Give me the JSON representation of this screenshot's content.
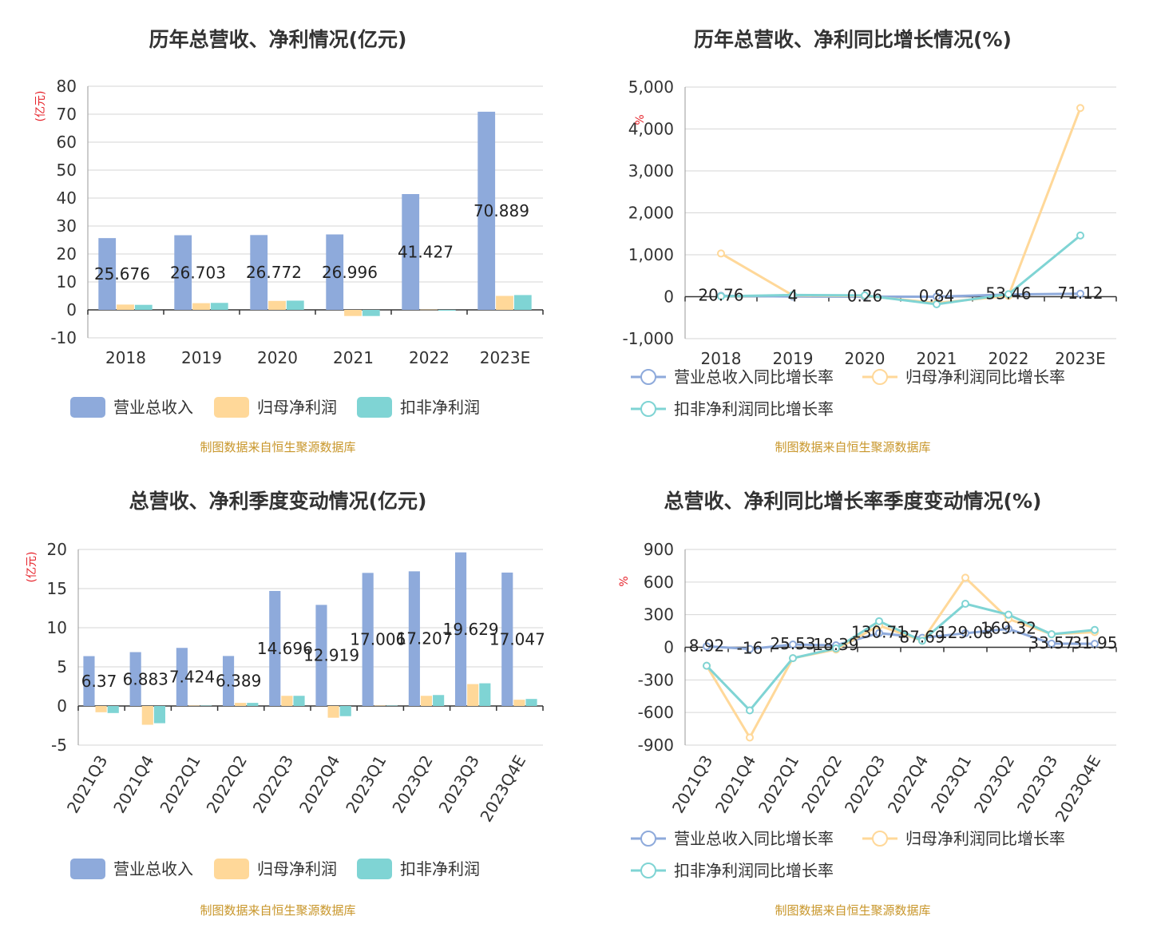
{
  "source_note": "制图数据来自恒生聚源数据库",
  "colors": {
    "revenue": "#8eaadb",
    "net_profit": "#ffd899",
    "deducted_profit": "#7fd4d4",
    "revenue_line": "#8eaadb",
    "net_profit_line": "#ffd899",
    "deducted_line": "#7fd4d4",
    "grid": "#d6d6d6",
    "axis": "#333333"
  },
  "chart_data": [
    {
      "id": "annual_bar",
      "type": "bar",
      "title": "历年总营收、净利情况(亿元)",
      "ylabel": "(亿元)",
      "ylim": [
        -10,
        80
      ],
      "yticks": [
        -10,
        0,
        10,
        20,
        30,
        40,
        50,
        60,
        70,
        80
      ],
      "ytick_labels": [
        "-10",
        "0",
        "10",
        "20",
        "30",
        "40",
        "50",
        "60",
        "70",
        "80"
      ],
      "categories": [
        "2018",
        "2019",
        "2020",
        "2021",
        "2022",
        "2023E"
      ],
      "series": [
        {
          "name": "营业总收入",
          "color_key": "revenue",
          "values": [
            25.676,
            26.703,
            26.772,
            26.996,
            41.427,
            70.889
          ]
        },
        {
          "name": "归母净利润",
          "color_key": "net_profit",
          "values": [
            1.9,
            2.4,
            3.2,
            -2.2,
            0.1,
            5.0
          ]
        },
        {
          "name": "扣非净利润",
          "color_key": "deducted_profit",
          "values": [
            1.8,
            2.5,
            3.3,
            -2.2,
            -0.3,
            5.3
          ]
        }
      ],
      "data_labels": [
        "25.676",
        "26.703",
        "26.772",
        "26.996",
        "41.427",
        "70.889"
      ]
    },
    {
      "id": "annual_line",
      "type": "line",
      "title": "历年总营收、净利同比增长情况(%)",
      "ylabel": "%",
      "ylim": [
        -1000,
        5000
      ],
      "yticks": [
        -1000,
        0,
        1000,
        2000,
        3000,
        4000,
        5000
      ],
      "ytick_labels": [
        "-1,000",
        "0",
        "1,000",
        "2,000",
        "3,000",
        "4,000",
        "5,000"
      ],
      "categories": [
        "2018",
        "2019",
        "2020",
        "2021",
        "2022",
        "2023E"
      ],
      "series": [
        {
          "name": "营业总收入同比增长率",
          "color_key": "revenue_line",
          "values": [
            20.76,
            4,
            0.26,
            0.84,
            53.46,
            71.12
          ]
        },
        {
          "name": "归母净利润同比增长率",
          "color_key": "net_profit_line",
          "values": [
            1030,
            30,
            20,
            -150,
            20,
            4500
          ]
        },
        {
          "name": "扣非净利润同比增长率",
          "color_key": "deducted_line",
          "values": [
            10,
            40,
            30,
            -180,
            60,
            1460
          ]
        }
      ],
      "data_labels": [
        "20.76",
        "4",
        "0.26",
        "0.84",
        "53.46",
        "71.12"
      ]
    },
    {
      "id": "quarter_bar",
      "type": "bar",
      "title": "总营收、净利季度变动情况(亿元)",
      "ylabel": "(亿元)",
      "ylim": [
        -5,
        20
      ],
      "yticks": [
        -5,
        0,
        5,
        10,
        15,
        20
      ],
      "ytick_labels": [
        "-5",
        "0",
        "5",
        "10",
        "15",
        "20"
      ],
      "categories": [
        "2021Q3",
        "2021Q4",
        "2022Q1",
        "2022Q2",
        "2022Q3",
        "2022Q4",
        "2023Q1",
        "2023Q2",
        "2023Q3",
        "2023Q4E"
      ],
      "series": [
        {
          "name": "营业总收入",
          "color_key": "revenue",
          "values": [
            6.37,
            6.883,
            7.424,
            6.389,
            14.696,
            12.919,
            17.006,
            17.207,
            19.629,
            17.047
          ]
        },
        {
          "name": "归母净利润",
          "color_key": "net_profit",
          "values": [
            -0.8,
            -2.4,
            0.05,
            0.4,
            1.3,
            -1.5,
            0.05,
            1.3,
            2.8,
            0.8
          ]
        },
        {
          "name": "扣非净利润",
          "color_key": "deducted_profit",
          "values": [
            -0.9,
            -2.2,
            0.05,
            0.4,
            1.3,
            -1.3,
            0.05,
            1.4,
            2.9,
            0.9
          ]
        }
      ],
      "data_labels": [
        "6.37",
        "6.883",
        "7.424",
        "6.389",
        "14.696",
        "12.919",
        "17.006",
        "17.207",
        "19.629",
        "17.047"
      ]
    },
    {
      "id": "quarter_line",
      "type": "line",
      "title": "总营收、净利同比增长率季度变动情况(%)",
      "ylabel": "%",
      "ylim": [
        -900,
        900
      ],
      "yticks": [
        -900,
        -600,
        -300,
        0,
        300,
        600,
        900
      ],
      "ytick_labels": [
        "-900",
        "-600",
        "-300",
        "0",
        "300",
        "600",
        "900"
      ],
      "categories": [
        "2021Q3",
        "2021Q4",
        "2022Q1",
        "2022Q2",
        "2022Q3",
        "2022Q4",
        "2023Q1",
        "2023Q2",
        "2023Q3",
        "2023Q4E"
      ],
      "series": [
        {
          "name": "营业总收入同比增长率",
          "color_key": "revenue_line",
          "values": [
            8.92,
            -16,
            25.53,
            18.39,
            130.71,
            87.69,
            129.08,
            169.32,
            33.57,
            31.95
          ]
        },
        {
          "name": "归母净利润同比增长率",
          "color_key": "net_profit_line",
          "values": [
            -170,
            -830,
            -100,
            -20,
            200,
            60,
            640,
            260,
            120,
            140
          ]
        },
        {
          "name": "扣非净利润同比增长率",
          "color_key": "deducted_line",
          "values": [
            -170,
            -580,
            -100,
            -10,
            240,
            60,
            400,
            300,
            120,
            160
          ]
        }
      ],
      "data_labels": [
        "8.92",
        "-16",
        "25.53",
        "18.39",
        "130.71",
        "87.69",
        "129.08",
        "169.32",
        "33.57",
        "31.95"
      ]
    }
  ]
}
